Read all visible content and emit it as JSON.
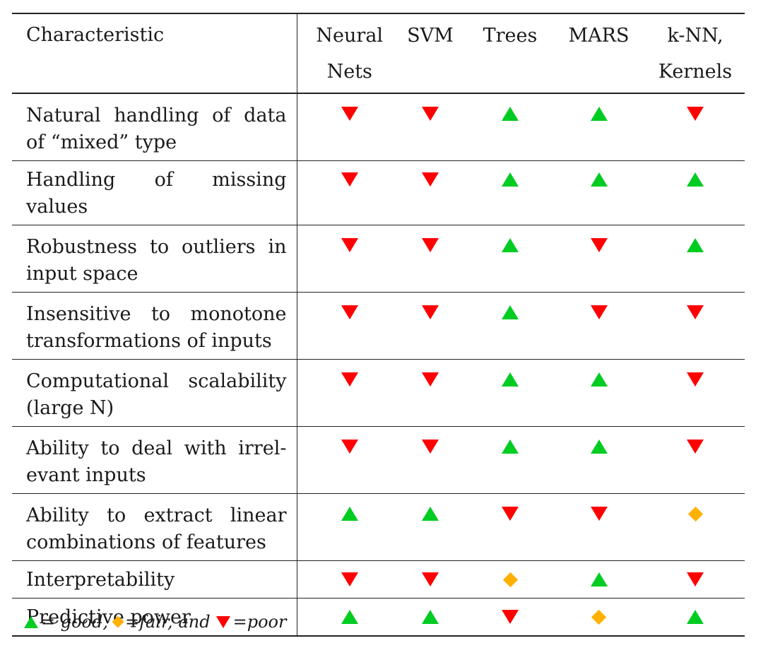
{
  "table": {
    "header": {
      "characteristic": "Characteristic",
      "methods": [
        "Neural Nets",
        "SVM",
        "Trees",
        "MARS",
        "k-NN, Kernels"
      ]
    },
    "rows": [
      {
        "characteristic": "Natural handling of data of “mixed” type",
        "ratings": [
          "poor",
          "poor",
          "good",
          "good",
          "poor"
        ]
      },
      {
        "characteristic": "Handling of missing values",
        "ratings": [
          "poor",
          "poor",
          "good",
          "good",
          "good"
        ]
      },
      {
        "characteristic": "Robustness to outliers in input space",
        "ratings": [
          "poor",
          "poor",
          "good",
          "poor",
          "good"
        ]
      },
      {
        "characteristic": "Insensitive to monotone transformations of inputs",
        "ratings": [
          "poor",
          "poor",
          "good",
          "poor",
          "poor"
        ]
      },
      {
        "characteristic": "Computational scalability (large N)",
        "ratings": [
          "poor",
          "poor",
          "good",
          "good",
          "poor"
        ]
      },
      {
        "characteristic": "Ability to deal with irrel-evant inputs",
        "ratings": [
          "poor",
          "poor",
          "good",
          "good",
          "poor"
        ]
      },
      {
        "characteristic": "Ability to extract linear combinations of features",
        "ratings": [
          "good",
          "good",
          "poor",
          "poor",
          "fair"
        ]
      },
      {
        "characteristic": "Interpretability",
        "ratings": [
          "poor",
          "poor",
          "fair",
          "good",
          "poor"
        ]
      },
      {
        "characteristic": "Predictive power",
        "ratings": [
          "good",
          "good",
          "poor",
          "fair",
          "good"
        ]
      }
    ]
  },
  "legend": {
    "good": "= good,",
    "fair": "=fair,",
    "and": "and",
    "poor": "=poor"
  },
  "colors": {
    "good": "#00cc22",
    "fair": "#ffb000",
    "poor": "#ff0000"
  },
  "icons": {
    "good": "up-triangle-icon",
    "fair": "diamond-icon",
    "poor": "down-triangle-icon"
  }
}
